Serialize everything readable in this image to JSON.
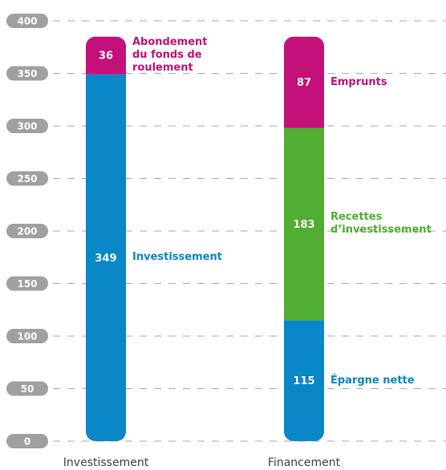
{
  "chart_data": {
    "type": "stacked_bar",
    "categories": [
      "Investissement",
      "Financement"
    ],
    "series": [
      {
        "name": "Investissement",
        "color": "#0a87c6",
        "values": [
          349,
          null
        ]
      },
      {
        "name": "Abondement du fonds de roulement",
        "color": "#c4117a",
        "values": [
          36,
          null
        ]
      },
      {
        "name": "Épargne nette",
        "color": "#0a87c6",
        "values": [
          null,
          115
        ]
      },
      {
        "name": "Recettes d’investissement",
        "color": "#52ae32",
        "values": [
          null,
          183
        ]
      },
      {
        "name": "Emprunts",
        "color": "#c4117a",
        "values": [
          null,
          87
        ]
      }
    ],
    "ylim": [
      0,
      400
    ],
    "yticks": [
      0,
      50,
      100,
      150,
      200,
      250,
      300,
      350,
      400
    ],
    "grid": true
  }
}
